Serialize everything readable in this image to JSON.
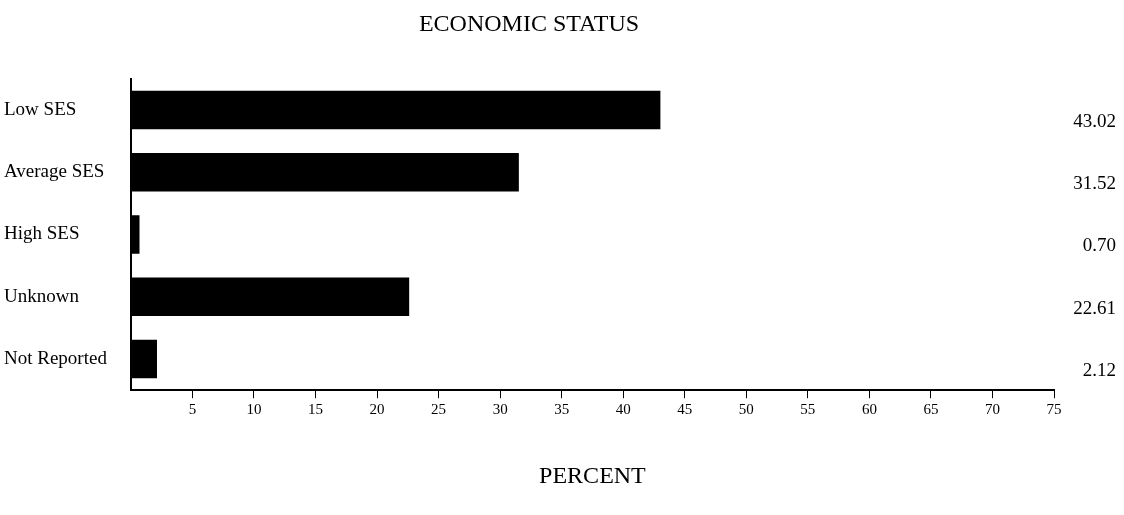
{
  "chart_data": {
    "type": "bar",
    "orientation": "horizontal",
    "title": "ECONOMIC STATUS",
    "xlabel": "PERCENT",
    "categories": [
      "Low SES",
      "Average SES",
      "High SES",
      "Unknown",
      "Not Reported"
    ],
    "values": [
      43.02,
      31.52,
      0.7,
      22.61,
      2.12
    ],
    "value_labels": [
      "43.02",
      "31.52",
      "0.70",
      "22.61",
      "2.12"
    ],
    "color": "#000000",
    "xlim": [
      0,
      75
    ],
    "xticks": [
      5,
      10,
      15,
      20,
      25,
      30,
      35,
      40,
      45,
      50,
      55,
      60,
      65,
      70,
      75
    ],
    "grid": false,
    "legend": false
  }
}
